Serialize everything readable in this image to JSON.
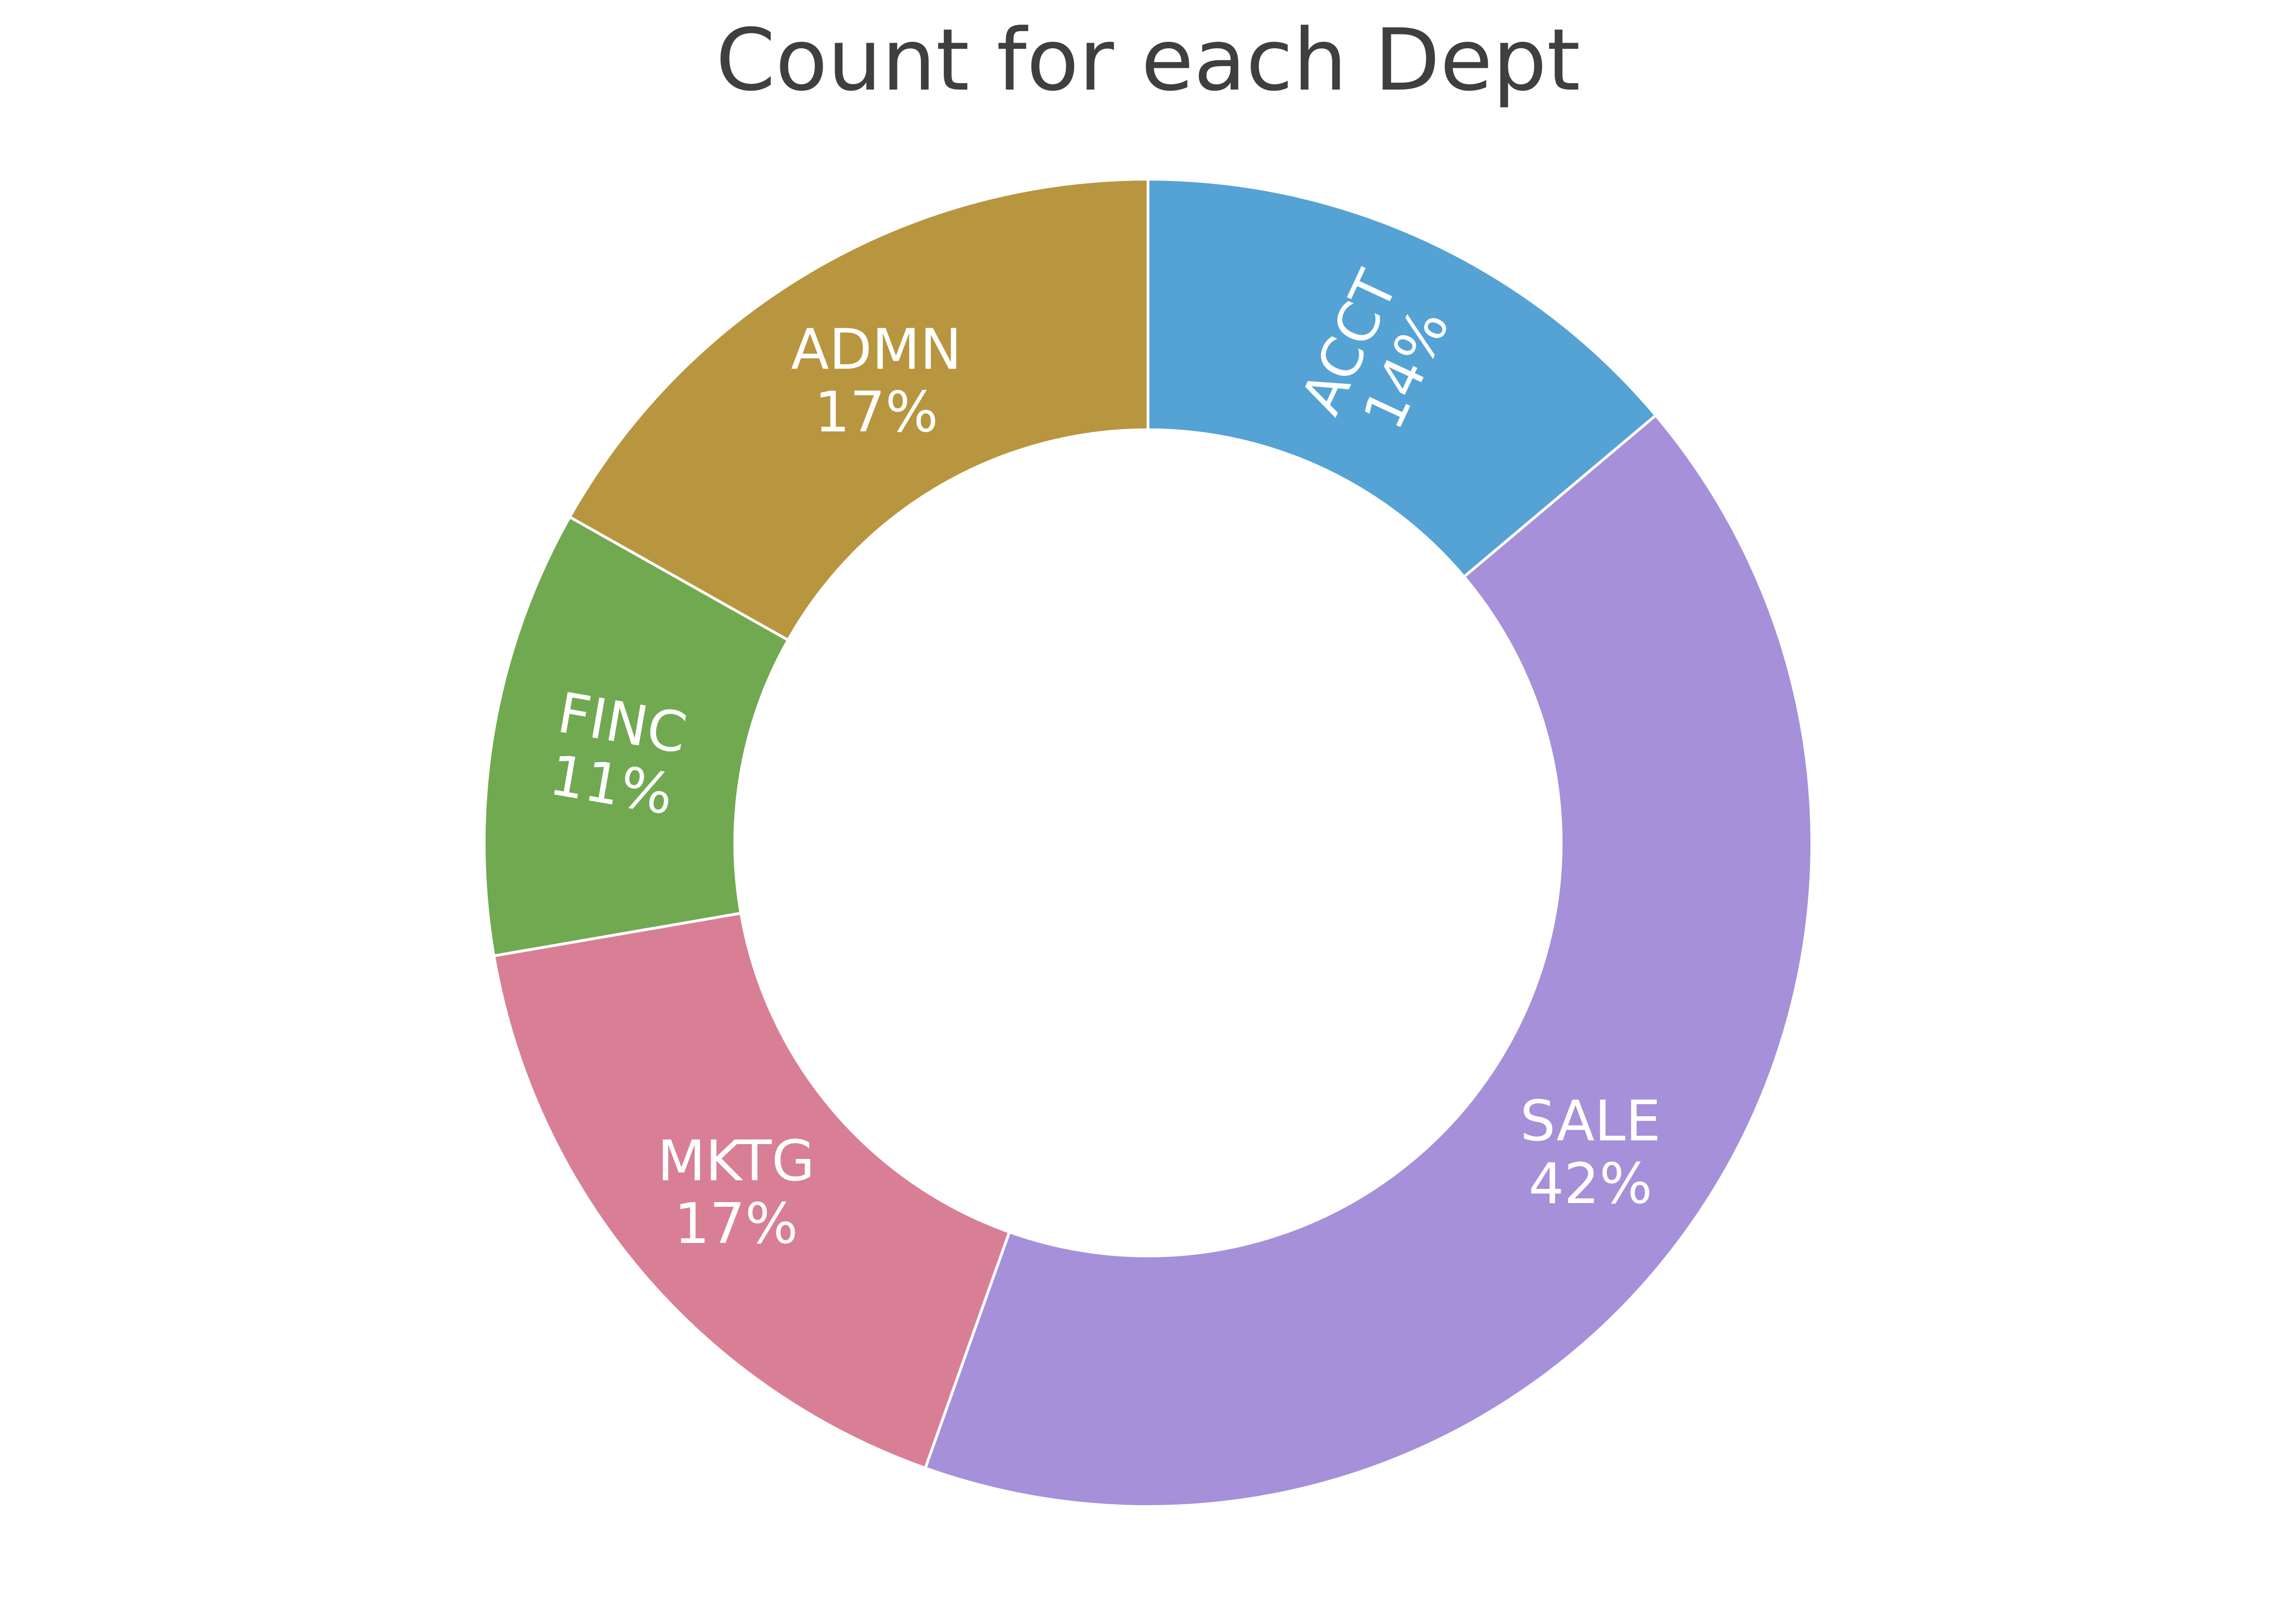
{
  "chart_data": {
    "type": "pie",
    "title": "Count for each Dept",
    "donut": true,
    "categories": [
      "ACCT",
      "SALE",
      "MKTG",
      "FINC",
      "ADMN"
    ],
    "values": [
      14,
      42,
      17,
      11,
      17
    ],
    "value_labels": [
      "14%",
      "42%",
      "17%",
      "11%",
      "17%"
    ],
    "colors": [
      "#55a3d5",
      "#a590d9",
      "#d87f95",
      "#71a951",
      "#b8953f"
    ],
    "legend": "none",
    "start": "top",
    "direction": "clockwise"
  }
}
